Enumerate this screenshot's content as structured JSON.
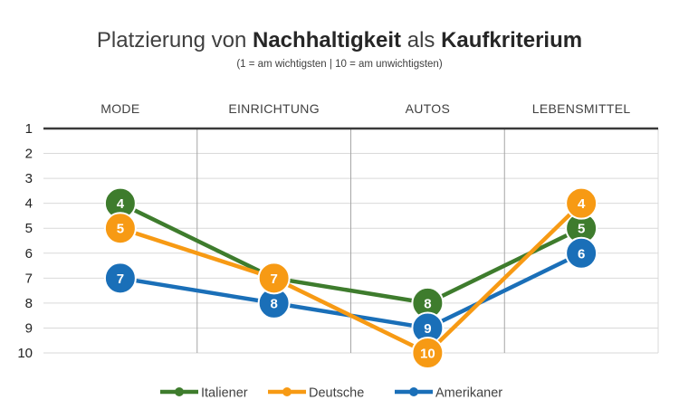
{
  "chart_data": {
    "type": "line",
    "title": {
      "parts": [
        {
          "text": "Platzierung von ",
          "bold": false
        },
        {
          "text": "Nachhaltigkeit",
          "bold": true
        },
        {
          "text": " als ",
          "bold": false
        },
        {
          "text": "Kaufkriterium",
          "bold": true
        }
      ]
    },
    "subtitle": "(1 = am wichtigsten | 10 = am unwichtigsten)",
    "categories": [
      "MODE",
      "EINRICHTUNG",
      "AUTOS",
      "LEBENSMITTEL"
    ],
    "ylim": [
      1,
      10
    ],
    "y_reversed": true,
    "yticks": [
      1,
      2,
      3,
      4,
      5,
      6,
      7,
      8,
      9,
      10
    ],
    "grid": true,
    "legend_position": "bottom",
    "series": [
      {
        "name": "Italiener",
        "color": "#3e7c2d",
        "values": [
          4,
          7,
          8,
          5
        ]
      },
      {
        "name": "Deutsche",
        "color": "#f79a14",
        "values": [
          5,
          7,
          10,
          4
        ]
      },
      {
        "name": "Amerikaner",
        "color": "#1a6fb8",
        "values": [
          7,
          8,
          9,
          6
        ]
      }
    ],
    "draw_order": [
      0,
      2,
      1
    ]
  }
}
